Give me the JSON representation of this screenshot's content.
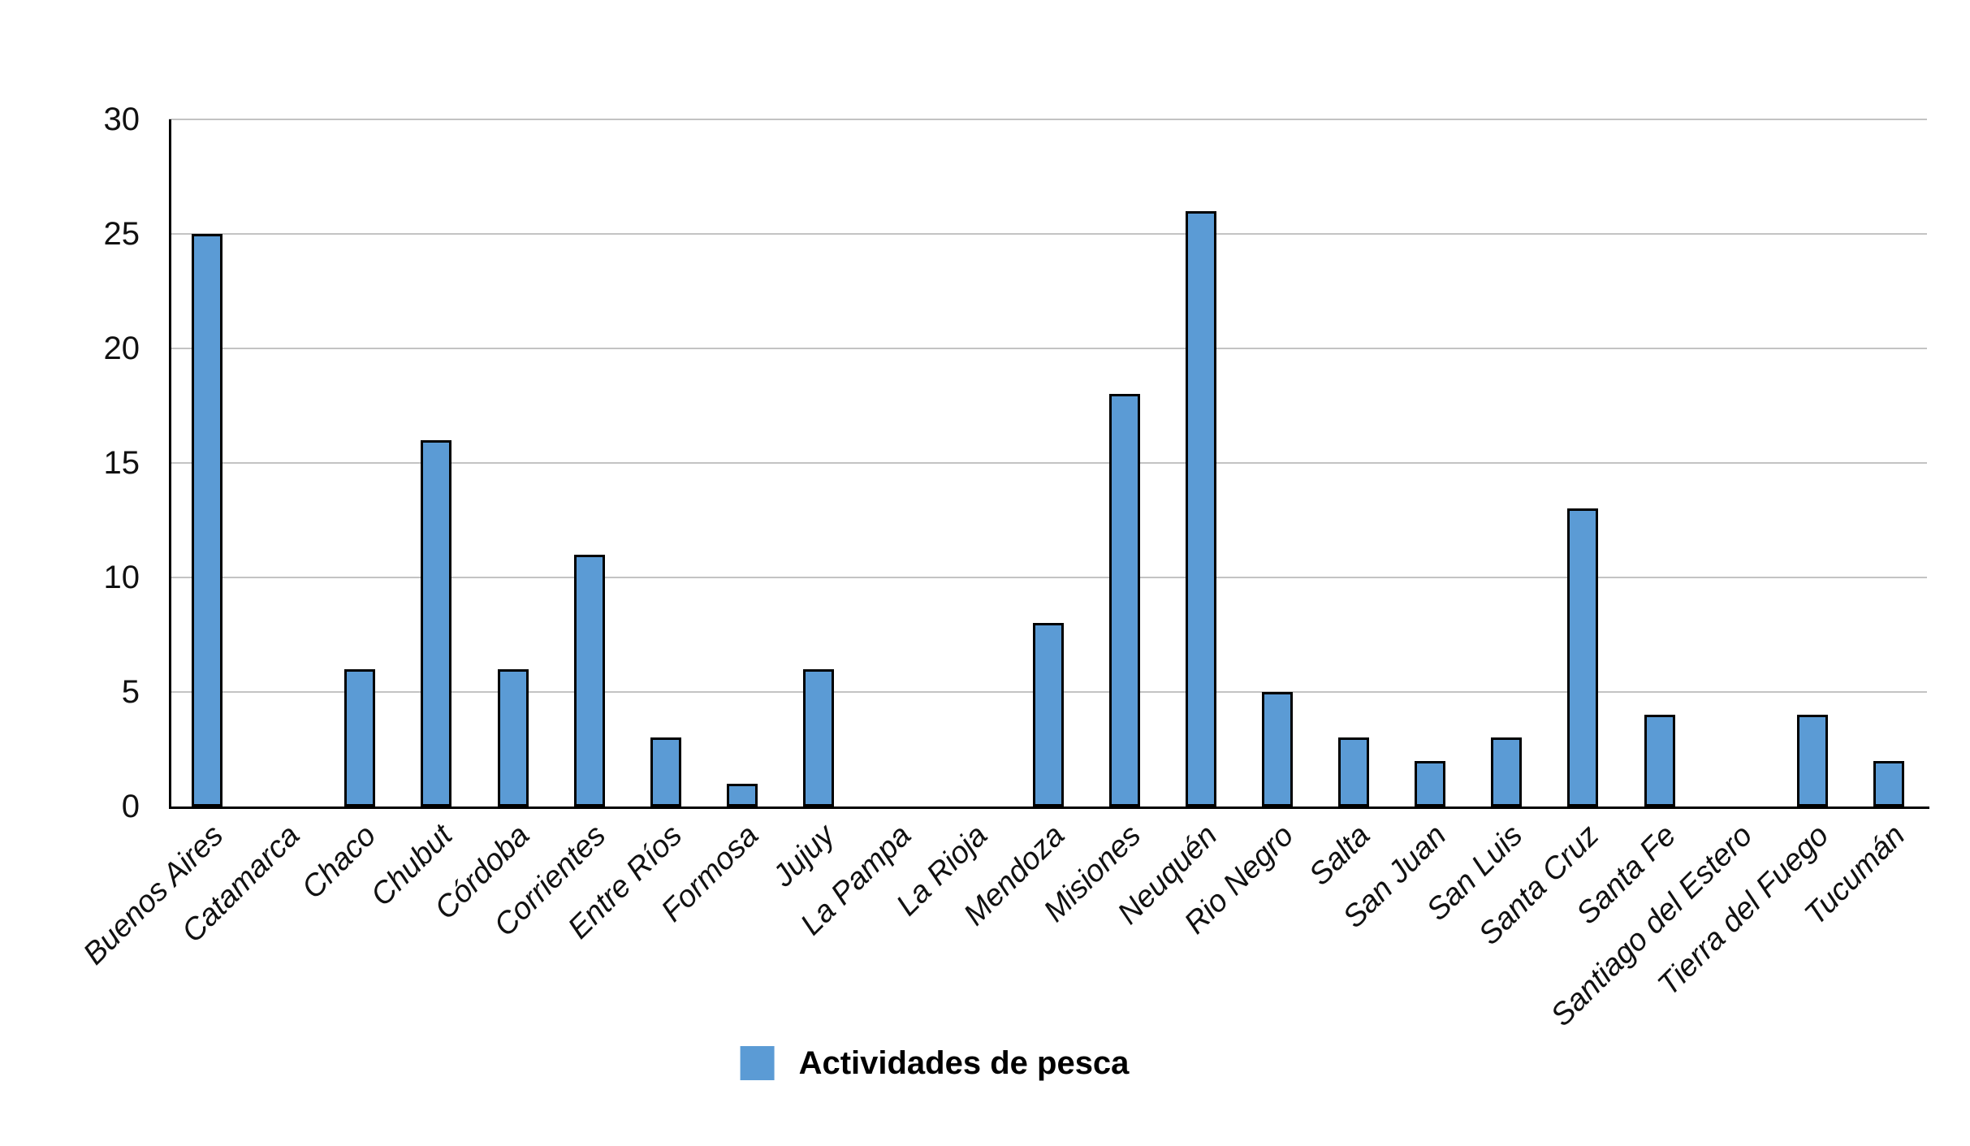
{
  "chart_data": {
    "type": "bar",
    "title": "",
    "xlabel": "",
    "ylabel": "",
    "categories": [
      "Buenos Aires",
      "Catamarca",
      "Chaco",
      "Chubut",
      "Córdoba",
      "Corrientes",
      "Entre Ríos",
      "Formosa",
      "Jujuy",
      "La Pampa",
      "La Rioja",
      "Mendoza",
      "Misiones",
      "Neuquén",
      "Rio Negro",
      "Salta",
      "San Juan",
      "San Luis",
      "Santa Cruz",
      "Santa Fe",
      "Santiago del Estero",
      "Tierra del Fuego",
      "Tucumán"
    ],
    "series": [
      {
        "name": "Actividades de pesca",
        "values": [
          25,
          0,
          6,
          16,
          6,
          11,
          3,
          1,
          6,
          0,
          0,
          8,
          18,
          26,
          5,
          3,
          2,
          3,
          13,
          4,
          0,
          4,
          2
        ]
      }
    ],
    "ylim": [
      0,
      30
    ],
    "yticks": [
      0,
      5,
      10,
      15,
      20,
      25,
      30
    ],
    "grid": true,
    "legend_position": "bottom",
    "colors": {
      "bar_fill": "#5b9bd5",
      "bar_border": "#000000",
      "gridline": "#c3c3c3",
      "axis_line": "#000000",
      "text": "#111111",
      "background": "#ffffff"
    }
  },
  "legend": {
    "label": "Actividades de pesca",
    "swatch_color": "#5b9bd5"
  }
}
